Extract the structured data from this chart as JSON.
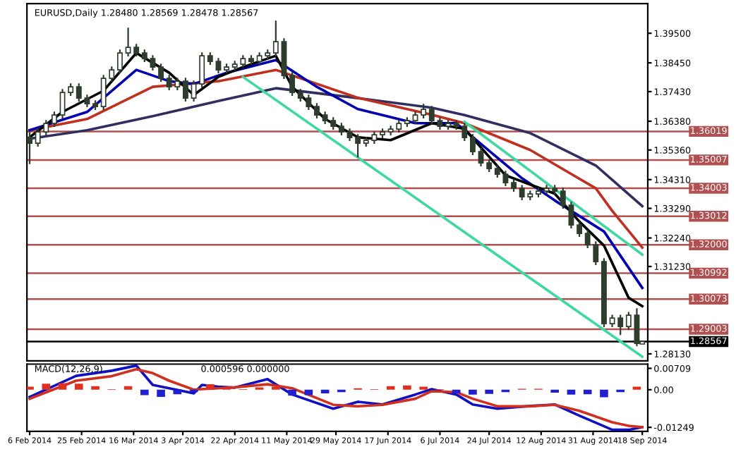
{
  "chart_data": [
    {
      "type": "candlestick",
      "title": "EURUSD,Daily 1.28480 1.28569 1.28478 1.28567",
      "color": "#2e3d2e",
      "x": [
        "2014-02-06",
        "2014-02-09",
        "2014-02-12",
        "2014-02-15",
        "2014-02-18",
        "2014-02-21",
        "2014-02-24",
        "2014-02-27",
        "2014-03-02",
        "2014-03-05",
        "2014-03-08",
        "2014-03-11",
        "2014-03-14",
        "2014-03-17",
        "2014-03-20",
        "2014-03-23",
        "2014-03-26",
        "2014-03-29",
        "2014-04-01",
        "2014-04-04",
        "2014-04-07",
        "2014-04-10",
        "2014-04-13",
        "2014-04-16",
        "2014-04-19",
        "2014-04-22",
        "2014-04-25",
        "2014-04-28",
        "2014-05-01",
        "2014-05-04",
        "2014-05-07",
        "2014-05-10",
        "2014-05-13",
        "2014-05-16",
        "2014-05-19",
        "2014-05-22",
        "2014-05-25",
        "2014-05-28",
        "2014-05-31",
        "2014-06-03",
        "2014-06-06",
        "2014-06-09",
        "2014-06-12",
        "2014-06-15",
        "2014-06-18",
        "2014-06-21",
        "2014-06-24",
        "2014-06-27",
        "2014-06-30",
        "2014-07-03",
        "2014-07-06",
        "2014-07-09",
        "2014-07-12",
        "2014-07-15",
        "2014-07-18",
        "2014-07-21",
        "2014-07-24",
        "2014-07-27",
        "2014-07-30",
        "2014-08-02",
        "2014-08-05",
        "2014-08-08",
        "2014-08-11",
        "2014-08-14",
        "2014-08-17",
        "2014-08-20",
        "2014-08-23",
        "2014-08-26",
        "2014-08-29",
        "2014-09-01",
        "2014-09-04",
        "2014-09-07",
        "2014-09-10",
        "2014-09-13",
        "2014-09-16",
        "2014-09-18"
      ],
      "ohlc": [
        [
          1.358,
          1.36,
          1.3486,
          1.356
        ],
        [
          1.356,
          1.3612,
          1.3548,
          1.36
        ],
        [
          1.36,
          1.3642,
          1.3588,
          1.363
        ],
        [
          1.363,
          1.3672,
          1.3618,
          1.366
        ],
        [
          1.366,
          1.3752,
          1.3648,
          1.374
        ],
        [
          1.374,
          1.3772,
          1.3728,
          1.376
        ],
        [
          1.376,
          1.3772,
          1.3708,
          1.372
        ],
        [
          1.372,
          1.3732,
          1.3688,
          1.37
        ],
        [
          1.37,
          1.3712,
          1.3678,
          1.369
        ],
        [
          1.369,
          1.3802,
          1.3678,
          1.379
        ],
        [
          1.379,
          1.3832,
          1.3778,
          1.382
        ],
        [
          1.382,
          1.3892,
          1.3808,
          1.388
        ],
        [
          1.388,
          1.397,
          1.3868,
          1.39
        ],
        [
          1.39,
          1.3912,
          1.3868,
          1.388
        ],
        [
          1.388,
          1.3892,
          1.3848,
          1.386
        ],
        [
          1.386,
          1.3872,
          1.3818,
          1.383
        ],
        [
          1.383,
          1.3842,
          1.3778,
          1.379
        ],
        [
          1.379,
          1.3802,
          1.3748,
          1.376
        ],
        [
          1.376,
          1.3792,
          1.3748,
          1.378
        ],
        [
          1.378,
          1.3792,
          1.3708,
          1.372
        ],
        [
          1.372,
          1.3782,
          1.3708,
          1.377
        ],
        [
          1.377,
          1.3882,
          1.3758,
          1.387
        ],
        [
          1.387,
          1.3882,
          1.3838,
          1.385
        ],
        [
          1.385,
          1.3862,
          1.3808,
          1.382
        ],
        [
          1.382,
          1.3842,
          1.3808,
          1.383
        ],
        [
          1.383,
          1.3852,
          1.3818,
          1.384
        ],
        [
          1.384,
          1.3872,
          1.3828,
          1.386
        ],
        [
          1.386,
          1.3872,
          1.3838,
          1.385
        ],
        [
          1.385,
          1.3882,
          1.3838,
          1.387
        ],
        [
          1.387,
          1.3892,
          1.3858,
          1.388
        ],
        [
          1.388,
          1.3995,
          1.3868,
          1.392
        ],
        [
          1.392,
          1.3932,
          1.3788,
          1.38
        ],
        [
          1.38,
          1.3812,
          1.3728,
          1.374
        ],
        [
          1.374,
          1.3752,
          1.3708,
          1.372
        ],
        [
          1.372,
          1.3732,
          1.3678,
          1.369
        ],
        [
          1.369,
          1.3702,
          1.3648,
          1.366
        ],
        [
          1.366,
          1.3672,
          1.3628,
          1.364
        ],
        [
          1.364,
          1.3652,
          1.3608,
          1.362
        ],
        [
          1.362,
          1.3632,
          1.3588,
          1.36
        ],
        [
          1.36,
          1.3612,
          1.3568,
          1.358
        ],
        [
          1.358,
          1.3592,
          1.351,
          1.356
        ],
        [
          1.356,
          1.3582,
          1.3548,
          1.357
        ],
        [
          1.357,
          1.3602,
          1.3558,
          1.359
        ],
        [
          1.359,
          1.3612,
          1.3578,
          1.36
        ],
        [
          1.36,
          1.3622,
          1.3588,
          1.361
        ],
        [
          1.361,
          1.3642,
          1.3598,
          1.363
        ],
        [
          1.363,
          1.3652,
          1.3618,
          1.364
        ],
        [
          1.364,
          1.3672,
          1.3628,
          1.366
        ],
        [
          1.366,
          1.37,
          1.3648,
          1.368
        ],
        [
          1.368,
          1.3692,
          1.3628,
          1.364
        ],
        [
          1.364,
          1.3652,
          1.3608,
          1.362
        ],
        [
          1.362,
          1.3642,
          1.3608,
          1.363
        ],
        [
          1.363,
          1.3642,
          1.3608,
          1.362
        ],
        [
          1.362,
          1.3632,
          1.3568,
          1.358
        ],
        [
          1.358,
          1.3592,
          1.3518,
          1.353
        ],
        [
          1.353,
          1.3542,
          1.3478,
          1.349
        ],
        [
          1.349,
          1.3502,
          1.3458,
          1.347
        ],
        [
          1.347,
          1.3482,
          1.3438,
          1.345
        ],
        [
          1.345,
          1.3462,
          1.3408,
          1.342
        ],
        [
          1.342,
          1.3432,
          1.3388,
          1.34
        ],
        [
          1.34,
          1.3412,
          1.3358,
          1.337
        ],
        [
          1.337,
          1.3392,
          1.3358,
          1.338
        ],
        [
          1.338,
          1.3402,
          1.3368,
          1.339
        ],
        [
          1.339,
          1.3412,
          1.3378,
          1.34
        ],
        [
          1.34,
          1.3412,
          1.3378,
          1.339
        ],
        [
          1.339,
          1.3402,
          1.3328,
          1.334
        ],
        [
          1.334,
          1.3352,
          1.3258,
          1.327
        ],
        [
          1.327,
          1.3282,
          1.3228,
          1.324
        ],
        [
          1.324,
          1.3252,
          1.3188,
          1.32
        ],
        [
          1.32,
          1.3212,
          1.3128,
          1.314
        ],
        [
          1.314,
          1.3152,
          1.2908,
          1.292
        ],
        [
          1.292,
          1.2952,
          1.2908,
          1.294
        ],
        [
          1.294,
          1.2952,
          1.288,
          1.291
        ],
        [
          1.291,
          1.2962,
          1.2898,
          1.295
        ],
        [
          1.295,
          1.2975,
          1.284,
          1.285
        ],
        [
          1.2848,
          1.28569,
          1.28478,
          1.28567
        ]
      ],
      "series": [
        {
          "type": "line",
          "color": "#303060",
          "x": [
            "2014-02-06",
            "2014-02-27",
            "2014-03-23",
            "2014-04-16",
            "2014-05-07",
            "2014-06-06",
            "2014-07-03",
            "2014-07-15",
            "2014-08-08",
            "2014-09-01",
            "2014-09-18"
          ],
          "values": [
            1.3576,
            1.3606,
            1.3656,
            1.371,
            1.3755,
            1.372,
            1.3686,
            1.366,
            1.3596,
            1.3481,
            1.3337
          ]
        },
        {
          "type": "line",
          "color": "#c03020",
          "x": [
            "2014-02-06",
            "2014-02-27",
            "2014-03-23",
            "2014-04-16",
            "2014-05-07",
            "2014-06-06",
            "2014-07-03",
            "2014-07-15",
            "2014-08-08",
            "2014-09-01",
            "2014-09-07",
            "2014-09-18"
          ],
          "values": [
            1.3606,
            1.3646,
            1.376,
            1.378,
            1.382,
            1.3721,
            1.3661,
            1.3631,
            1.3536,
            1.34,
            1.332,
            1.319
          ]
        },
        {
          "type": "line",
          "color": "#0000b0",
          "x": [
            "2014-02-06",
            "2014-02-27",
            "2014-03-17",
            "2014-03-29",
            "2014-04-07",
            "2014-04-19",
            "2014-05-07",
            "2014-05-22",
            "2014-06-06",
            "2014-06-27",
            "2014-07-12",
            "2014-08-05",
            "2014-08-17",
            "2014-09-04",
            "2014-09-18"
          ],
          "values": [
            1.3606,
            1.3671,
            1.382,
            1.378,
            1.377,
            1.381,
            1.3855,
            1.376,
            1.3681,
            1.3631,
            1.3631,
            1.3436,
            1.3357,
            1.3247,
            1.3047
          ]
        },
        {
          "type": "line",
          "color": "#000000",
          "x": [
            "2014-02-06",
            "2014-02-18",
            "2014-03-05",
            "2014-03-17",
            "2014-03-29",
            "2014-04-07",
            "2014-04-16",
            "2014-04-25",
            "2014-05-07",
            "2014-05-13",
            "2014-05-25",
            "2014-06-06",
            "2014-06-18",
            "2014-07-03",
            "2014-07-15",
            "2014-07-30",
            "2014-08-17",
            "2014-08-26",
            "2014-09-04",
            "2014-09-13",
            "2014-09-18"
          ],
          "values": [
            1.3581,
            1.3671,
            1.3746,
            1.388,
            1.381,
            1.3731,
            1.3795,
            1.383,
            1.387,
            1.376,
            1.3646,
            1.3581,
            1.3571,
            1.3631,
            1.3611,
            1.3446,
            1.3381,
            1.3282,
            1.3197,
            1.3012,
            1.2982
          ]
        },
        {
          "type": "line",
          "color": "#40d8a0",
          "x": [
            "2014-04-25",
            "2014-09-18"
          ],
          "values": [
            1.3795,
            1.2803
          ]
        },
        {
          "type": "line",
          "color": "#40d8a0",
          "x": [
            "2014-07-15",
            "2014-09-18"
          ],
          "values": [
            1.3636,
            1.3165
          ]
        }
      ],
      "ref_lines": [
        {
          "axis": "y",
          "value": 1.36019,
          "label": "1.36019",
          "color": "#b05050"
        },
        {
          "axis": "y",
          "value": 1.35007,
          "label": "1.35007",
          "color": "#b05050"
        },
        {
          "axis": "y",
          "value": 1.34003,
          "label": "1.34003",
          "color": "#b05050"
        },
        {
          "axis": "y",
          "value": 1.33012,
          "label": "1.33012",
          "color": "#b05050"
        },
        {
          "axis": "y",
          "value": 1.32,
          "label": "1.32000",
          "color": "#b05050"
        },
        {
          "axis": "y",
          "value": 1.30992,
          "label": "1.30992",
          "color": "#b05050"
        },
        {
          "axis": "y",
          "value": 1.30073,
          "label": "1.30073",
          "color": "#b05050"
        },
        {
          "axis": "y",
          "value": 1.29003,
          "label": "1.29003",
          "color": "#b05050"
        },
        {
          "axis": "y",
          "value": 1.28567,
          "label": "1.28567",
          "color": "#000000"
        }
      ],
      "xlim": [
        "2014-02-05",
        "2014-09-20"
      ],
      "ylim": [
        1.2788,
        1.4055
      ],
      "yticks": [
        {
          "value": 1.395,
          "label": "1.39500"
        },
        {
          "value": 1.3845,
          "label": "1.38450"
        },
        {
          "value": 1.3743,
          "label": "1.37430"
        },
        {
          "value": 1.3638,
          "label": "1.36380"
        },
        {
          "value": 1.3536,
          "label": "1.35360"
        },
        {
          "value": 1.3431,
          "label": "1.34310"
        },
        {
          "value": 1.3329,
          "label": "1.33290"
        },
        {
          "value": 1.3224,
          "label": "1.32240"
        },
        {
          "value": 1.3123,
          "label": "1.31230"
        },
        {
          "value": 1.2813,
          "label": "1.28130"
        }
      ],
      "tick_labels": "y"
    },
    {
      "type": "bar",
      "title": "MACD(12,26,9)",
      "annotations": [
        "0.000596 0.000000"
      ],
      "series": [
        {
          "type": "bar",
          "x": [
            "2014-02-06",
            "2014-02-12",
            "2014-02-18",
            "2014-02-24",
            "2014-03-02",
            "2014-03-08",
            "2014-03-14",
            "2014-03-20",
            "2014-03-26",
            "2014-04-01",
            "2014-04-07",
            "2014-04-13",
            "2014-04-19",
            "2014-04-25",
            "2014-05-01",
            "2014-05-07",
            "2014-05-13",
            "2014-05-19",
            "2014-05-25",
            "2014-05-31",
            "2014-06-06",
            "2014-06-12",
            "2014-06-18",
            "2014-06-24",
            "2014-06-30",
            "2014-07-06",
            "2014-07-12",
            "2014-07-18",
            "2014-07-24",
            "2014-07-30",
            "2014-08-05",
            "2014-08-11",
            "2014-08-17",
            "2014-08-23",
            "2014-08-29",
            "2014-09-04",
            "2014-09-10",
            "2014-09-16"
          ],
          "values": [
            0.001,
            0.002,
            0.0022,
            0.002,
            0.0012,
            0.0002,
            0.0012,
            -0.0018,
            -0.0024,
            -0.0015,
            -0.0008,
            0.0018,
            0.0004,
            0.0002,
            0.0008,
            0.001,
            -0.002,
            -0.0018,
            -0.0012,
            -0.0008,
            0.0005,
            0.0002,
            0.0012,
            0.0014,
            0.001,
            0.0002,
            -0.0012,
            -0.0016,
            -0.0014,
            -0.0008,
            0.0003,
            0.0003,
            -0.001,
            -0.0016,
            -0.0015,
            -0.0025,
            -0.0008,
            0.001
          ],
          "colors": [
            "#e03020",
            "#e03020",
            "#e03020",
            "#e03020",
            "#e03020",
            "#e03020",
            "#e03020",
            "#2020d0",
            "#2020d0",
            "#2020d0",
            "#2020d0",
            "#e03020",
            "#e03020",
            "#e03020",
            "#e03020",
            "#e03020",
            "#2020d0",
            "#2020d0",
            "#2020d0",
            "#2020d0",
            "#e03020",
            "#e03020",
            "#e03020",
            "#e03020",
            "#e03020",
            "#e03020",
            "#2020d0",
            "#2020d0",
            "#2020d0",
            "#2020d0",
            "#e03020",
            "#e03020",
            "#2020d0",
            "#2020d0",
            "#2020d0",
            "#2020d0",
            "#2020d0",
            "#e03020"
          ]
        },
        {
          "type": "line",
          "color": "#1010c0",
          "x": [
            "2014-02-06",
            "2014-02-23",
            "2014-03-08",
            "2014-03-17",
            "2014-03-23",
            "2014-03-29",
            "2014-04-07",
            "2014-04-10",
            "2014-04-16",
            "2014-04-22",
            "2014-05-04",
            "2014-05-13",
            "2014-05-28",
            "2014-06-06",
            "2014-06-15",
            "2014-06-27",
            "2014-07-03",
            "2014-07-12",
            "2014-07-18",
            "2014-07-27",
            "2014-08-08",
            "2014-08-17",
            "2014-08-26",
            "2014-09-07",
            "2014-09-13",
            "2014-09-18"
          ],
          "values": [
            -0.0024,
            0.0046,
            0.0063,
            0.008,
            0.0016,
            0.0005,
            -0.0012,
            0.0016,
            0.001,
            0.0007,
            0.0035,
            -0.0016,
            -0.0063,
            -0.004,
            -0.0049,
            -0.0016,
            0.0002,
            -0.0016,
            -0.0049,
            -0.0063,
            -0.0054,
            -0.0049,
            -0.0086,
            -0.0133,
            -0.0133,
            -0.0124
          ]
        },
        {
          "type": "line",
          "color": "#d03020",
          "x": [
            "2014-02-06",
            "2014-02-23",
            "2014-03-08",
            "2014-03-17",
            "2014-03-23",
            "2014-03-29",
            "2014-04-07",
            "2014-04-10",
            "2014-04-16",
            "2014-04-22",
            "2014-05-04",
            "2014-05-13",
            "2014-05-28",
            "2014-06-06",
            "2014-06-15",
            "2014-06-27",
            "2014-07-03",
            "2014-07-12",
            "2014-07-18",
            "2014-07-27",
            "2014-08-08",
            "2014-08-17",
            "2014-08-26",
            "2014-09-07",
            "2014-09-13",
            "2014-09-18"
          ],
          "values": [
            -0.003,
            0.003,
            0.0045,
            0.0068,
            0.0055,
            0.003,
            0.0,
            0.0002,
            0.0005,
            0.0008,
            0.0018,
            0.0005,
            -0.005,
            -0.0055,
            -0.005,
            -0.003,
            -0.0005,
            -0.0008,
            -0.003,
            -0.0055,
            -0.0055,
            -0.005,
            -0.007,
            -0.0108,
            -0.012,
            -0.0124
          ]
        }
      ],
      "xlim": [
        "2014-02-05",
        "2014-09-20"
      ],
      "xticks": [
        {
          "value": "2014-02-06",
          "label": "6 Feb 2014"
        },
        {
          "value": "2014-02-25",
          "label": "25 Feb 2014"
        },
        {
          "value": "2014-03-16",
          "label": "16 Mar 2014"
        },
        {
          "value": "2014-04-03",
          "label": "3 Apr 2014"
        },
        {
          "value": "2014-04-22",
          "label": "22 Apr 2014"
        },
        {
          "value": "2014-05-11",
          "label": "11 May 2014"
        },
        {
          "value": "2014-05-29",
          "label": "29 May 2014"
        },
        {
          "value": "2014-06-17",
          "label": "17 Jun 2014"
        },
        {
          "value": "2014-07-06",
          "label": "6 Jul 2014"
        },
        {
          "value": "2014-07-24",
          "label": "24 Jul 2014"
        },
        {
          "value": "2014-08-12",
          "label": "12 Aug 2014"
        },
        {
          "value": "2014-08-31",
          "label": "31 Aug 2014"
        },
        {
          "value": "2014-09-18",
          "label": "18 Sep 2014"
        }
      ],
      "ylim": [
        -0.0138,
        0.0085
      ],
      "yticks": [
        0.00709,
        {
          "value": 0,
          "label": "0.00"
        },
        -0.01249
      ]
    }
  ]
}
